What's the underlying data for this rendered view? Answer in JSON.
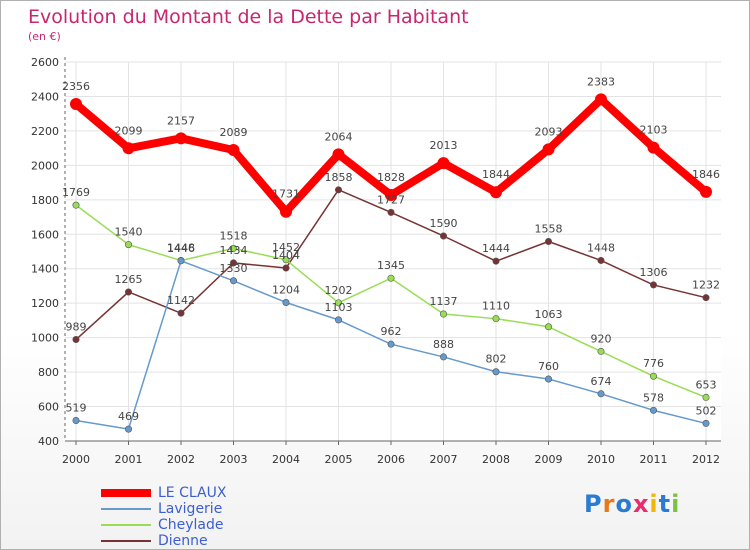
{
  "title": "Evolution du Montant de la Dette par Habitant",
  "subtitle": "(en €)",
  "logo": "Proxiti",
  "chart_data": {
    "type": "line",
    "title": "Evolution du Montant de la Dette par Habitant",
    "subtitle": "(en €)",
    "xlabel": "",
    "ylabel": "",
    "ylim": [
      400,
      2600
    ],
    "yticks": [
      400,
      600,
      800,
      1000,
      1200,
      1400,
      1600,
      1800,
      2000,
      2200,
      2400,
      2600
    ],
    "x": [
      "2000",
      "2001",
      "2002",
      "2003",
      "2004",
      "2005",
      "2006",
      "2007",
      "2008",
      "2009",
      "2010",
      "2011",
      "2012"
    ],
    "grid": true,
    "legend_position": "bottom-left",
    "series": [
      {
        "name": "LE CLAUX",
        "color": "#ff0000",
        "values": [
          2356,
          2099,
          2157,
          2089,
          1731,
          2064,
          1828,
          2013,
          1844,
          2093,
          2383,
          2103,
          1846
        ]
      },
      {
        "name": "Lavigerie",
        "color": "#6699cc",
        "values": [
          519,
          469,
          1446,
          1330,
          1204,
          1103,
          962,
          888,
          802,
          760,
          674,
          578,
          502
        ]
      },
      {
        "name": "Cheylade",
        "color": "#99dd55",
        "values": [
          1769,
          1540,
          1448,
          1518,
          1452,
          1202,
          1345,
          1137,
          1110,
          1063,
          920,
          776,
          653
        ]
      },
      {
        "name": "Dienne",
        "color": "#773333",
        "values": [
          989,
          1265,
          1142,
          1434,
          1404,
          1858,
          1727,
          1590,
          1444,
          1558,
          1448,
          1306,
          1232
        ]
      }
    ]
  }
}
